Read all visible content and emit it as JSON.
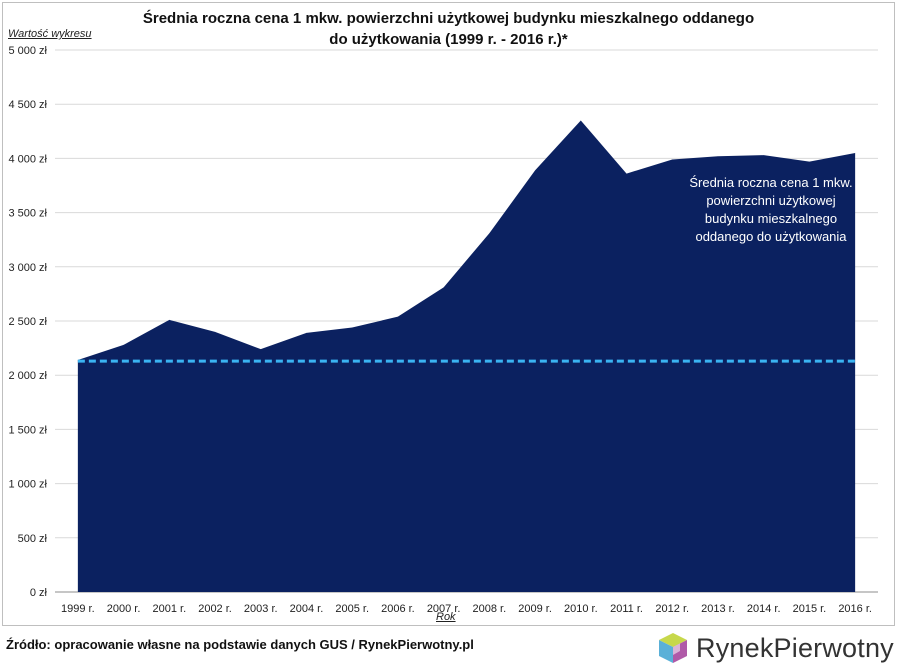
{
  "chart_data": {
    "type": "area",
    "title_lines": [
      "Średnia roczna cena 1 mkw. powierzchni użytkowej budynku mieszkalnego oddanego",
      "do użytkowania (1999 r. - 2016 r.)*"
    ],
    "ylabel": "Wartość wykresu",
    "xlabel": "Rok",
    "ylim": [
      0,
      5000
    ],
    "y_ticks": [
      "0 zł",
      "500 zł",
      "1 000 zł",
      "1 500 zł",
      "2 000 zł",
      "2 500 zł",
      "3 000 zł",
      "3 500 zł",
      "4 000 zł",
      "4 500 zł",
      "5 000 zł"
    ],
    "y_tick_values": [
      0,
      500,
      1000,
      1500,
      2000,
      2500,
      3000,
      3500,
      4000,
      4500,
      5000
    ],
    "categories": [
      "1999 r.",
      "2000 r.",
      "2001 r.",
      "2002 r.",
      "2003 r.",
      "2004 r.",
      "2005 r.",
      "2006 r.",
      "2007 r.",
      "2008 r.",
      "2009 r.",
      "2010 r.",
      "2011 r.",
      "2012 r.",
      "2013 r.",
      "2014 r.",
      "2015 r.",
      "2016 r."
    ],
    "series": [
      {
        "values": [
          2140,
          2280,
          2510,
          2400,
          2240,
          2390,
          2440,
          2540,
          2810,
          3310,
          3890,
          4350,
          3860,
          3990,
          4020,
          4030,
          3970,
          4050
        ],
        "color": "#0b2160"
      }
    ],
    "reference_line": {
      "value": 2130,
      "color": "#3ab4f2",
      "style": "dashed"
    },
    "grid": true,
    "annotation": [
      "Średnia roczna cena 1 mkw.",
      "powierzchni użytkowej",
      "budynku mieszkalnego",
      "oddanego do użytkowania"
    ]
  },
  "footer": {
    "source": "Źródło: opracowanie własne na podstawie danych GUS / RynekPierwotny.pl",
    "logo_word1": "Rynek",
    "logo_word2": "Pierwotny"
  }
}
